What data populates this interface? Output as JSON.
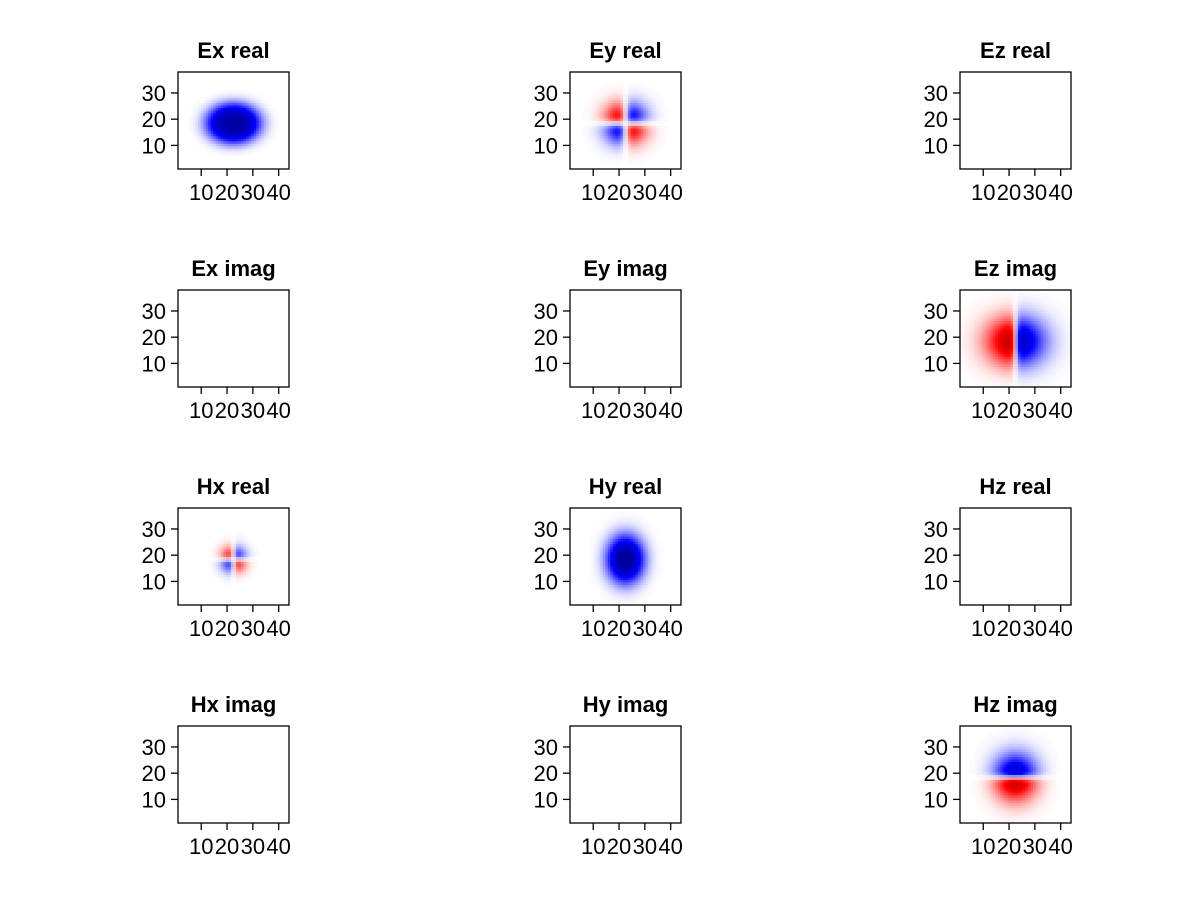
{
  "chart_data": {
    "type": "heatmap",
    "layout": {
      "rows": 4,
      "cols": 3
    },
    "colors": {
      "positive": "#ff0000",
      "negative": "#0000ff",
      "zero": "#ffffff",
      "strong_negative": "#000066",
      "strong_positive": "#660000"
    },
    "shared_axes": {
      "xlim": [
        1,
        44
      ],
      "ylim": [
        1,
        38
      ],
      "xticks": [
        10,
        20,
        30,
        40
      ],
      "xtick_labels": [
        "10",
        "20",
        "30",
        "40"
      ],
      "yticks": [
        10,
        20,
        30
      ],
      "ytick_labels": [
        "10",
        "20",
        "30"
      ]
    },
    "panels": [
      {
        "title": "Ex real",
        "pattern": "ex_real",
        "empty": false
      },
      {
        "title": "Ey real",
        "pattern": "ey_real",
        "empty": false
      },
      {
        "title": "Ez real",
        "pattern": "none",
        "empty": true
      },
      {
        "title": "Ex imag",
        "pattern": "none",
        "empty": true
      },
      {
        "title": "Ey imag",
        "pattern": "none",
        "empty": true
      },
      {
        "title": "Ez imag",
        "pattern": "ez_imag",
        "empty": false
      },
      {
        "title": "Hx real",
        "pattern": "hx_real",
        "empty": false
      },
      {
        "title": "Hy real",
        "pattern": "hy_real",
        "empty": false
      },
      {
        "title": "Hz real",
        "pattern": "none",
        "empty": true
      },
      {
        "title": "Hx imag",
        "pattern": "none",
        "empty": true
      },
      {
        "title": "Hy imag",
        "pattern": "none",
        "empty": true
      },
      {
        "title": "Hz imag",
        "pattern": "hz_imag",
        "empty": false
      }
    ]
  }
}
